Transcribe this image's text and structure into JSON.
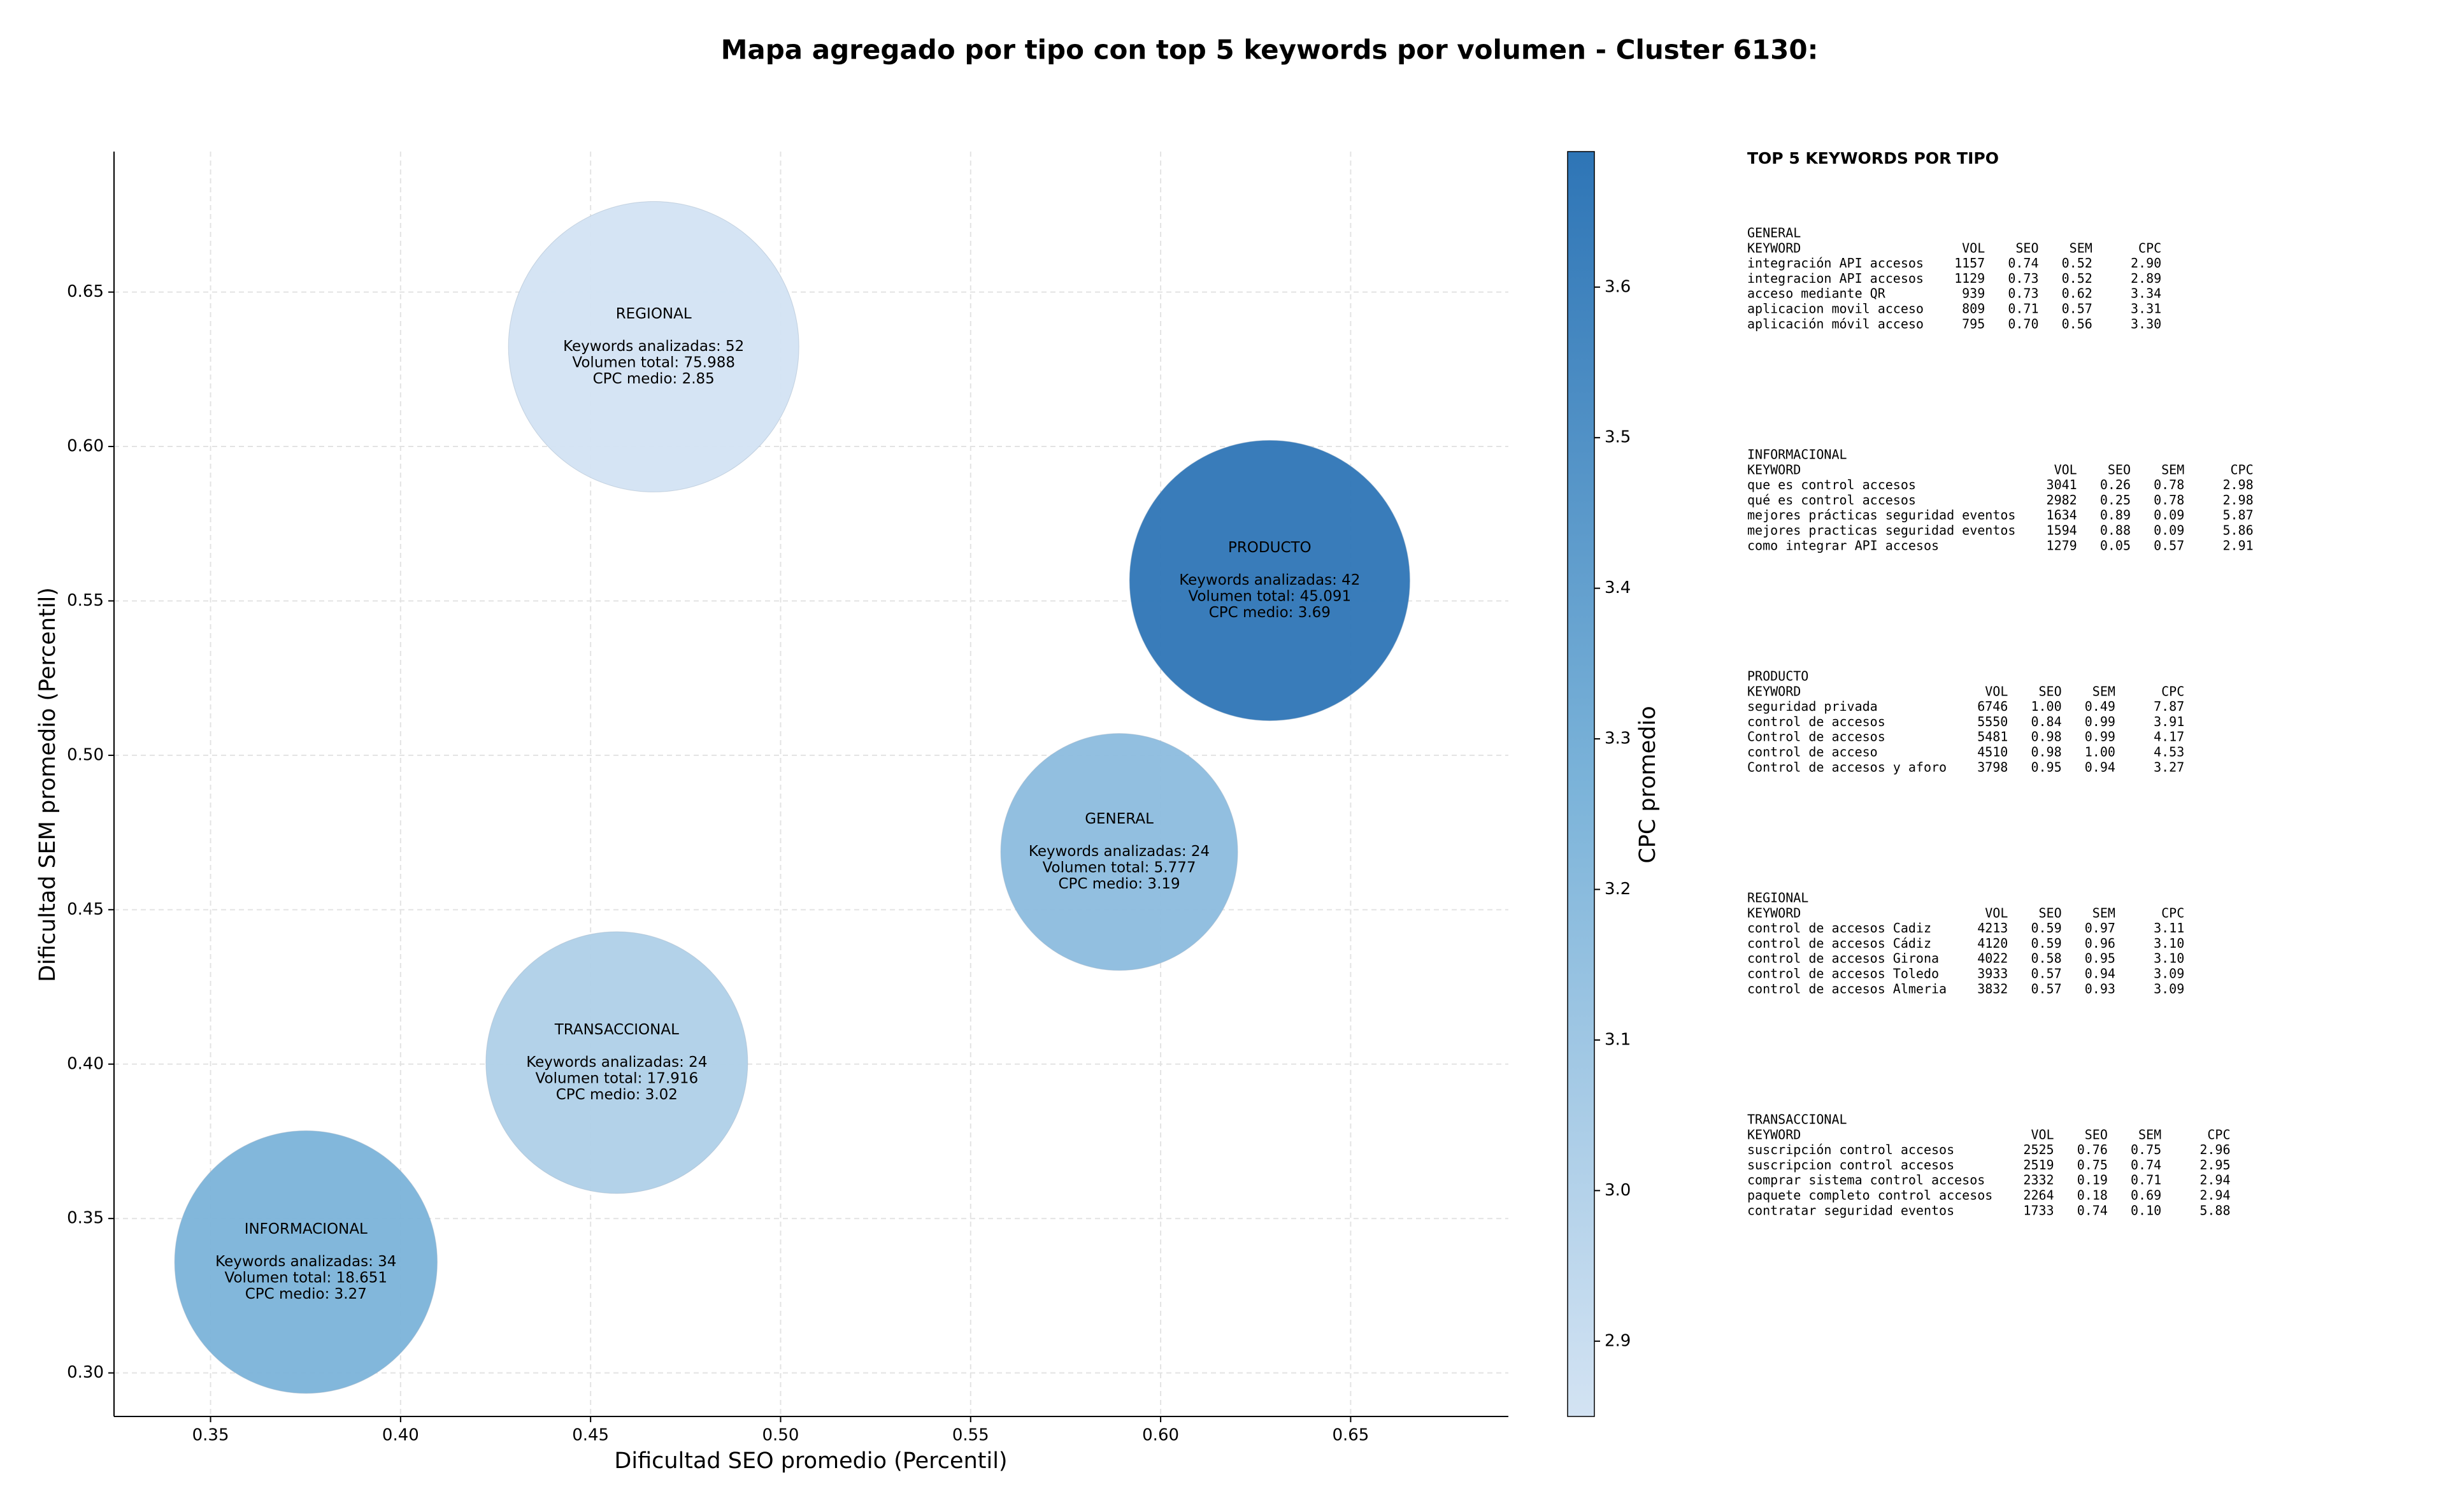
{
  "chart_data": {
    "type": "bubble",
    "title": "Mapa agregado por tipo con top 5 keywords por volumen - Cluster 6130:",
    "x_label": "Dificultad SEO promedio (Percentil)",
    "y_label": "Dificultad SEM promedio (Percentil)",
    "categories": [
      "REGIONAL",
      "PRODUCTO",
      "GENERAL",
      "TRANSACCIONAL",
      "INFORMACIONAL"
    ],
    "x": [
      0.4666,
      0.6287,
      0.5891,
      0.4569,
      0.3751
    ],
    "values": [
      0.6323,
      0.5566,
      0.4687,
      0.4005,
      0.3359
    ],
    "sizes": [
      75988,
      45091,
      5777,
      17916,
      18651
    ],
    "color_values": [
      2.85,
      3.69,
      3.19,
      3.02,
      3.27
    ],
    "value_labels": [
      [
        "Keywords analizadas: 52",
        "Volumen total: 75.988",
        "CPC medio: 2.85"
      ],
      [
        "Keywords analizadas: 42",
        "Volumen total: 45.091",
        "CPC medio: 3.69"
      ],
      [
        "Keywords analizadas: 24",
        "Volumen total: 5.777",
        "CPC medio: 3.19"
      ],
      [
        "Keywords analizadas: 24",
        "Volumen total: 17.916",
        "CPC medio: 3.02"
      ],
      [
        "Keywords analizadas: 34",
        "Volumen total: 18.651",
        "CPC medio: 3.27"
      ]
    ],
    "xlim": [
      0.3246,
      0.6915
    ],
    "xticks": [
      0.35,
      {
        "value": 0.4,
        "label": "0.40"
      },
      0.45,
      {
        "value": 0.5,
        "label": "0.50"
      },
      0.55,
      {
        "value": 0.6,
        "label": "0.60"
      },
      0.65
    ],
    "ylim": [
      0.2859,
      0.6955
    ],
    "yticks": [
      {
        "value": 0.3,
        "label": "0.30"
      },
      0.35,
      {
        "value": 0.4,
        "label": "0.40"
      },
      0.45,
      {
        "value": 0.5,
        "label": "0.50"
      },
      0.55,
      {
        "value": 0.6,
        "label": "0.60"
      },
      0.65
    ],
    "grid": true,
    "colorbar_label": "CPC promedio",
    "clim": [
      2.85,
      3.69
    ],
    "cticks": [
      2.9,
      {
        "value": 3.0,
        "label": "3.0"
      },
      3.1,
      3.2,
      3.3,
      3.4,
      3.5,
      3.6
    ],
    "cmap_colors": [
      "#d3e3f3",
      "#7bb3d9",
      "#2e75b6"
    ]
  },
  "panel": {
    "title": "TOP 5 KEYWORDS POR TIPO",
    "sections": [
      {
        "name": "GENERAL",
        "header": [
          "KEYWORD",
          "VOL",
          "SEO",
          "SEM",
          "CPC"
        ],
        "rows": [
          [
            "integración API accesos",
            "1157",
            "0.74",
            "0.52",
            "2.90"
          ],
          [
            "integracion API accesos",
            "1129",
            "0.73",
            "0.52",
            "2.89"
          ],
          [
            "acceso mediante QR",
            "939",
            "0.73",
            "0.62",
            "3.34"
          ],
          [
            "aplicacion movil acceso",
            "809",
            "0.71",
            "0.57",
            "3.31"
          ],
          [
            "aplicación móvil acceso",
            "795",
            "0.70",
            "0.56",
            "3.30"
          ]
        ]
      },
      {
        "name": "INFORMACIONAL",
        "header": [
          "KEYWORD",
          "VOL",
          "SEO",
          "SEM",
          "CPC"
        ],
        "rows": [
          [
            "que es control accesos",
            "3041",
            "0.26",
            "0.78",
            "2.98"
          ],
          [
            "qué es control accesos",
            "2982",
            "0.25",
            "0.78",
            "2.98"
          ],
          [
            "mejores prácticas seguridad eventos",
            "1634",
            "0.89",
            "0.09",
            "5.87"
          ],
          [
            "mejores practicas seguridad eventos",
            "1594",
            "0.88",
            "0.09",
            "5.86"
          ],
          [
            "como integrar API accesos",
            "1279",
            "0.05",
            "0.57",
            "2.91"
          ]
        ]
      },
      {
        "name": "PRODUCTO",
        "header": [
          "KEYWORD",
          "VOL",
          "SEO",
          "SEM",
          "CPC"
        ],
        "rows": [
          [
            "seguridad privada",
            "6746",
            "1.00",
            "0.49",
            "7.87"
          ],
          [
            "control de accesos",
            "5550",
            "0.84",
            "0.99",
            "3.91"
          ],
          [
            "Control de accesos",
            "5481",
            "0.98",
            "0.99",
            "4.17"
          ],
          [
            "control de acceso",
            "4510",
            "0.98",
            "1.00",
            "4.53"
          ],
          [
            "Control de accesos y aforo",
            "3798",
            "0.95",
            "0.94",
            "3.27"
          ]
        ]
      },
      {
        "name": "REGIONAL",
        "header": [
          "KEYWORD",
          "VOL",
          "SEO",
          "SEM",
          "CPC"
        ],
        "rows": [
          [
            "control de accesos Cadiz",
            "4213",
            "0.59",
            "0.97",
            "3.11"
          ],
          [
            "control de accesos Cádiz",
            "4120",
            "0.59",
            "0.96",
            "3.10"
          ],
          [
            "control de accesos Girona",
            "4022",
            "0.58",
            "0.95",
            "3.10"
          ],
          [
            "control de accesos Toledo",
            "3933",
            "0.57",
            "0.94",
            "3.09"
          ],
          [
            "control de accesos Almeria",
            "3832",
            "0.57",
            "0.93",
            "3.09"
          ]
        ]
      },
      {
        "name": "TRANSACCIONAL",
        "header": [
          "KEYWORD",
          "VOL",
          "SEO",
          "SEM",
          "CPC"
        ],
        "rows": [
          [
            "suscripción control accesos",
            "2525",
            "0.76",
            "0.75",
            "2.96"
          ],
          [
            "suscripcion control accesos",
            "2519",
            "0.75",
            "0.74",
            "2.95"
          ],
          [
            "comprar sistema control accesos",
            "2332",
            "0.19",
            "0.71",
            "2.94"
          ],
          [
            "paquete completo control accesos",
            "2264",
            "0.18",
            "0.69",
            "2.94"
          ],
          [
            "contratar seguridad eventos",
            "1733",
            "0.74",
            "0.10",
            "5.88"
          ]
        ]
      }
    ]
  }
}
